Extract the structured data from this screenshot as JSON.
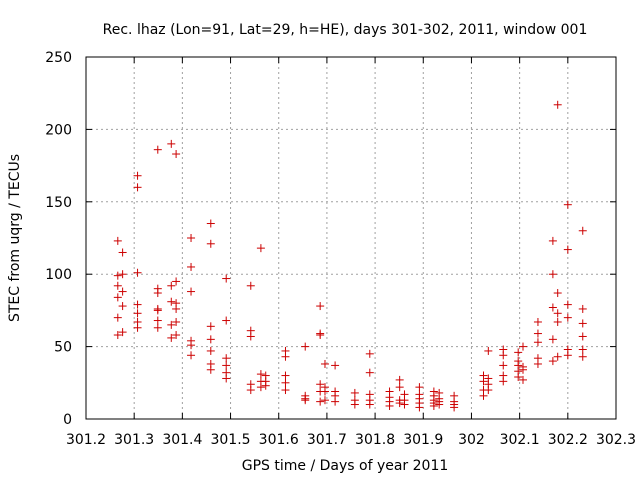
{
  "chart_data": {
    "type": "scatter",
    "title": "Rec. lhaz (Lon=91, Lat=29, h=HE), days 301-302, 2011, window 001",
    "xlabel": "GPS time / Days of year 2011",
    "ylabel": "STEC from uqrg / TECUs",
    "xlim": [
      301.2,
      302.3
    ],
    "ylim": [
      0,
      250
    ],
    "xticks": [
      "301.2",
      "301.3",
      "301.4",
      "301.5",
      "301.6",
      "301.7",
      "301.8",
      "301.9",
      "302",
      "302.1",
      "302.2",
      "302.3"
    ],
    "yticks": [
      "0",
      "50",
      "100",
      "150",
      "200",
      "250"
    ],
    "grid": true,
    "marker": "plus",
    "colors": {
      "series": "#cc0000"
    },
    "series": [
      {
        "points": [
          [
            301.266,
            123
          ],
          [
            301.266,
            99
          ],
          [
            301.266,
            92
          ],
          [
            301.266,
            84
          ],
          [
            301.266,
            70
          ],
          [
            301.266,
            58
          ],
          [
            301.276,
            115
          ],
          [
            301.276,
            100
          ],
          [
            301.276,
            88
          ],
          [
            301.276,
            78
          ],
          [
            301.276,
            60
          ],
          [
            301.307,
            168
          ],
          [
            301.307,
            160
          ],
          [
            301.307,
            101
          ],
          [
            301.307,
            79
          ],
          [
            301.307,
            73
          ],
          [
            301.307,
            67
          ],
          [
            301.307,
            63
          ],
          [
            301.349,
            186
          ],
          [
            301.349,
            90
          ],
          [
            301.349,
            87
          ],
          [
            301.349,
            76
          ],
          [
            301.349,
            75
          ],
          [
            301.349,
            68
          ],
          [
            301.349,
            63
          ],
          [
            301.377,
            190
          ],
          [
            301.377,
            92
          ],
          [
            301.377,
            81
          ],
          [
            301.377,
            65
          ],
          [
            301.377,
            56
          ],
          [
            301.387,
            183
          ],
          [
            301.387,
            95
          ],
          [
            301.387,
            80
          ],
          [
            301.387,
            76
          ],
          [
            301.387,
            67
          ],
          [
            301.387,
            58
          ],
          [
            301.418,
            125
          ],
          [
            301.418,
            105
          ],
          [
            301.418,
            88
          ],
          [
            301.418,
            54
          ],
          [
            301.418,
            51
          ],
          [
            301.418,
            44
          ],
          [
            301.459,
            135
          ],
          [
            301.459,
            121
          ],
          [
            301.459,
            64
          ],
          [
            301.459,
            55
          ],
          [
            301.459,
            47
          ],
          [
            301.459,
            38
          ],
          [
            301.459,
            34
          ],
          [
            301.491,
            97
          ],
          [
            301.491,
            68
          ],
          [
            301.491,
            42
          ],
          [
            301.491,
            37
          ],
          [
            301.491,
            32
          ],
          [
            301.491,
            28
          ],
          [
            301.542,
            92
          ],
          [
            301.542,
            61
          ],
          [
            301.542,
            57
          ],
          [
            301.542,
            24
          ],
          [
            301.542,
            20
          ],
          [
            301.563,
            118
          ],
          [
            301.563,
            31
          ],
          [
            301.563,
            26
          ],
          [
            301.563,
            22
          ],
          [
            301.573,
            30
          ],
          [
            301.573,
            26
          ],
          [
            301.573,
            23
          ],
          [
            301.614,
            47
          ],
          [
            301.614,
            43
          ],
          [
            301.614,
            30
          ],
          [
            301.614,
            25
          ],
          [
            301.614,
            20
          ],
          [
            301.655,
            50
          ],
          [
            301.655,
            16
          ],
          [
            301.655,
            14
          ],
          [
            301.655,
            13
          ],
          [
            301.686,
            78
          ],
          [
            301.686,
            59
          ],
          [
            301.686,
            58
          ],
          [
            301.686,
            24
          ],
          [
            301.686,
            19
          ],
          [
            301.686,
            12
          ],
          [
            301.696,
            38
          ],
          [
            301.696,
            22
          ],
          [
            301.696,
            19
          ],
          [
            301.696,
            13
          ],
          [
            301.717,
            37
          ],
          [
            301.717,
            19
          ],
          [
            301.717,
            16
          ],
          [
            301.717,
            12
          ],
          [
            301.758,
            18
          ],
          [
            301.758,
            13
          ],
          [
            301.758,
            10
          ],
          [
            301.789,
            45
          ],
          [
            301.789,
            32
          ],
          [
            301.789,
            17
          ],
          [
            301.789,
            13
          ],
          [
            301.789,
            10
          ],
          [
            301.83,
            19
          ],
          [
            301.83,
            15
          ],
          [
            301.83,
            12
          ],
          [
            301.83,
            9
          ],
          [
            301.851,
            27
          ],
          [
            301.851,
            22
          ],
          [
            301.851,
            13
          ],
          [
            301.851,
            11
          ],
          [
            301.861,
            17
          ],
          [
            301.861,
            13
          ],
          [
            301.861,
            10
          ],
          [
            301.892,
            22
          ],
          [
            301.892,
            17
          ],
          [
            301.892,
            14
          ],
          [
            301.892,
            11
          ],
          [
            301.892,
            8
          ],
          [
            301.922,
            19
          ],
          [
            301.922,
            16
          ],
          [
            301.922,
            13
          ],
          [
            301.922,
            11
          ],
          [
            301.922,
            9
          ],
          [
            301.933,
            18
          ],
          [
            301.933,
            14
          ],
          [
            301.933,
            12
          ],
          [
            301.933,
            10
          ],
          [
            301.964,
            16
          ],
          [
            301.964,
            12
          ],
          [
            301.964,
            10
          ],
          [
            301.964,
            8
          ],
          [
            302.025,
            30
          ],
          [
            302.025,
            26
          ],
          [
            302.025,
            20
          ],
          [
            302.025,
            16
          ],
          [
            302.035,
            47
          ],
          [
            302.035,
            28
          ],
          [
            302.035,
            24
          ],
          [
            302.035,
            20
          ],
          [
            302.066,
            48
          ],
          [
            302.066,
            44
          ],
          [
            302.066,
            37
          ],
          [
            302.066,
            30
          ],
          [
            302.066,
            26
          ],
          [
            302.097,
            46
          ],
          [
            302.097,
            40
          ],
          [
            302.097,
            37
          ],
          [
            302.097,
            33
          ],
          [
            302.097,
            29
          ],
          [
            302.107,
            50
          ],
          [
            302.107,
            36
          ],
          [
            302.107,
            34
          ],
          [
            302.107,
            27
          ],
          [
            302.138,
            67
          ],
          [
            302.138,
            59
          ],
          [
            302.138,
            53
          ],
          [
            302.138,
            42
          ],
          [
            302.138,
            38
          ],
          [
            302.169,
            123
          ],
          [
            302.169,
            100
          ],
          [
            302.169,
            77
          ],
          [
            302.169,
            55
          ],
          [
            302.169,
            40
          ],
          [
            302.179,
            217
          ],
          [
            302.179,
            87
          ],
          [
            302.179,
            73
          ],
          [
            302.179,
            67
          ],
          [
            302.179,
            43
          ],
          [
            302.2,
            148
          ],
          [
            302.2,
            117
          ],
          [
            302.2,
            79
          ],
          [
            302.2,
            70
          ],
          [
            302.2,
            48
          ],
          [
            302.2,
            44
          ],
          [
            302.231,
            130
          ],
          [
            302.231,
            76
          ],
          [
            302.231,
            66
          ],
          [
            302.231,
            57
          ],
          [
            302.231,
            48
          ],
          [
            302.231,
            43
          ]
        ]
      }
    ]
  }
}
